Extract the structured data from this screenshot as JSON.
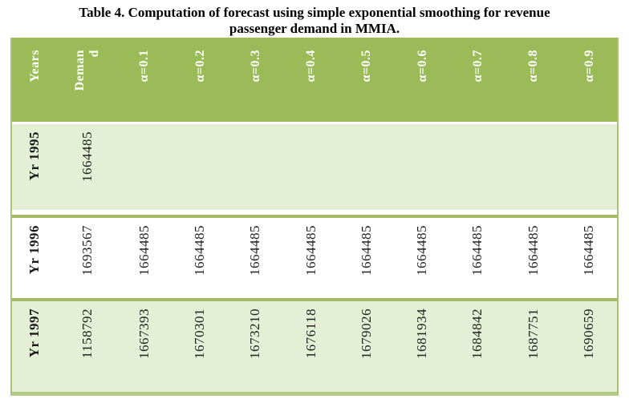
{
  "caption": "Table 4. Computation of forecast using simple exponential smoothing for revenue passenger demand in MMIA.",
  "colors": {
    "header_bg": "#9bbb59",
    "header_text": "#ffffff",
    "shaded_row_bg": "#e4efd5",
    "rule_green": "#a2bd66",
    "outer_border_green": "#aac176",
    "bottom_border_green": "#b2cc85"
  },
  "table": {
    "columns": [
      {
        "key": "years",
        "label": "Years",
        "lines": [
          "Years"
        ]
      },
      {
        "key": "demand",
        "label": "Demand",
        "lines": [
          "Deman",
          "d"
        ]
      },
      {
        "key": "alpha-0-1",
        "label": "α=0.1",
        "lines": [
          "α=0.1"
        ]
      },
      {
        "key": "alpha-0-2",
        "label": "α=0.2",
        "lines": [
          "α=0.2"
        ]
      },
      {
        "key": "alpha-0-3",
        "label": "α=0.3",
        "lines": [
          "α=0.3"
        ]
      },
      {
        "key": "alpha-0-4",
        "label": "α=0.4",
        "lines": [
          "α=0.4"
        ]
      },
      {
        "key": "alpha-0-5",
        "label": "α=0.5",
        "lines": [
          "α=0.5"
        ]
      },
      {
        "key": "alpha-0-6",
        "label": "α=0.6",
        "lines": [
          "α=0.6"
        ]
      },
      {
        "key": "alpha-0-7",
        "label": "α=0.7",
        "lines": [
          "α=0.7"
        ]
      },
      {
        "key": "alpha-0-8",
        "label": "α=0.8",
        "lines": [
          "α=0.8"
        ]
      },
      {
        "key": "alpha-0-9",
        "label": "α=0.9",
        "lines": [
          "α=0.9"
        ]
      }
    ],
    "rows": [
      {
        "key": "yr-1995",
        "cells": [
          "Yr 1995",
          "1664485",
          "",
          "",
          "",
          "",
          "",
          "",
          "",
          "",
          ""
        ]
      },
      {
        "key": "yr-1996",
        "cells": [
          "Yr 1996",
          "1693567",
          "1664485",
          "1664485",
          "1664485",
          "1664485",
          "1664485",
          "1664485",
          "1664485",
          "1664485",
          "1664485"
        ]
      },
      {
        "key": "yr-1997",
        "cells": [
          "Yr 1997",
          "1158792",
          "1667393",
          "1670301",
          "1673210",
          "1676118",
          "1679026",
          "1681934",
          "1684842",
          "1687751",
          "1690659"
        ]
      }
    ]
  },
  "chart_data": {
    "type": "table",
    "title": "Table 4. Computation of forecast using simple exponential smoothing for revenue passenger demand in MMIA.",
    "columns": [
      "Years",
      "Demand",
      "α=0.1",
      "α=0.2",
      "α=0.3",
      "α=0.4",
      "α=0.5",
      "α=0.6",
      "α=0.7",
      "α=0.8",
      "α=0.9"
    ],
    "rows": [
      [
        "Yr 1995",
        1664485,
        null,
        null,
        null,
        null,
        null,
        null,
        null,
        null,
        null
      ],
      [
        "Yr 1996",
        1693567,
        1664485,
        1664485,
        1664485,
        1664485,
        1664485,
        1664485,
        1664485,
        1664485,
        1664485
      ],
      [
        "Yr 1997",
        1158792,
        1667393,
        1670301,
        1673210,
        1676118,
        1679026,
        1681934,
        1684842,
        1687751,
        1690659
      ]
    ]
  }
}
